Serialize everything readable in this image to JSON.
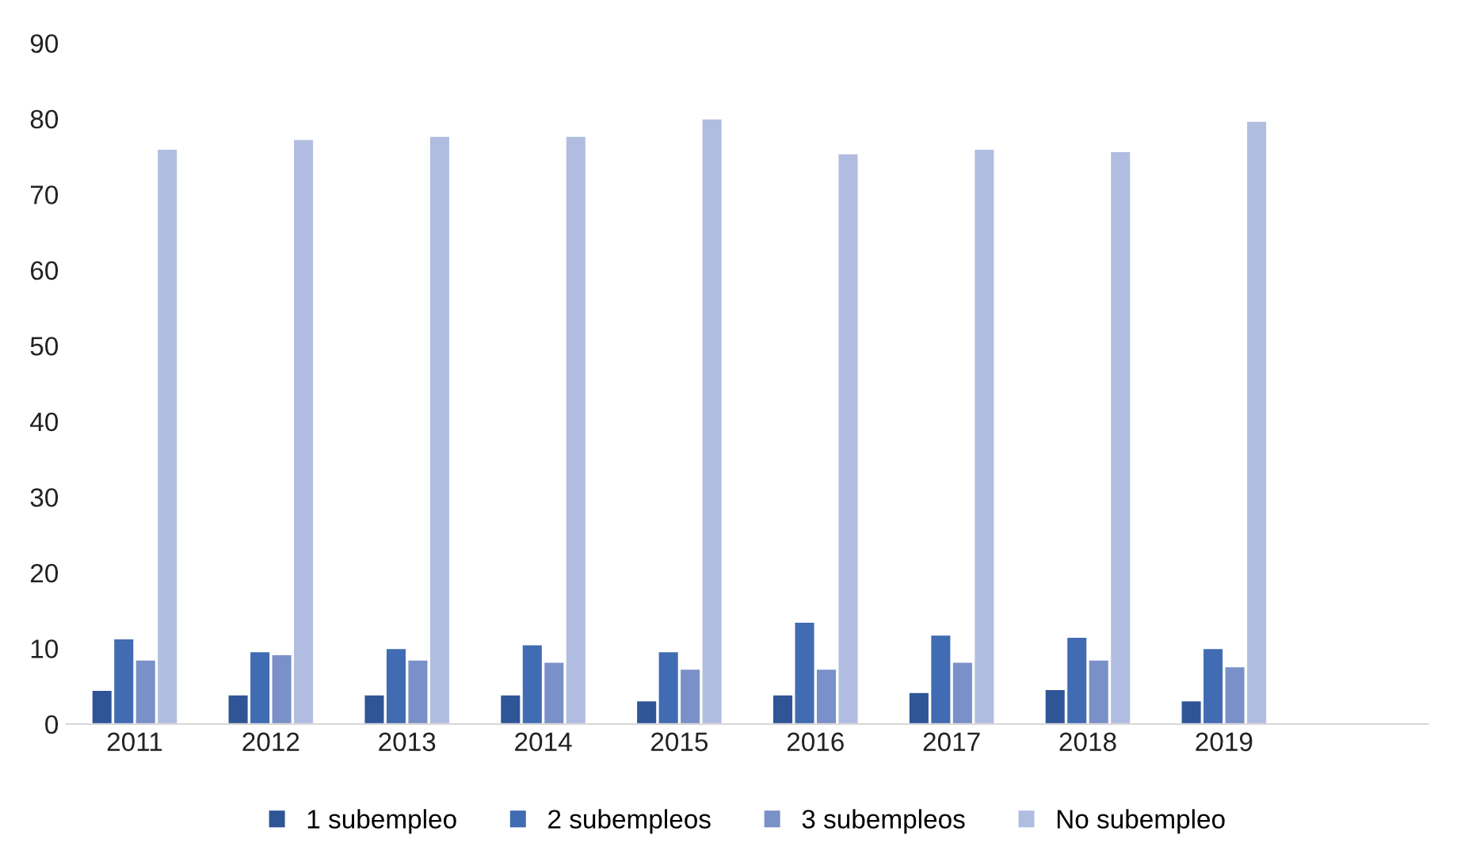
{
  "chart_data": {
    "type": "bar",
    "categories": [
      "2011",
      "2012",
      "2013",
      "2014",
      "2015",
      "2016",
      "2017",
      "2018",
      "2019",
      null
    ],
    "series": [
      {
        "name": "1 subempleo",
        "color": "#305597",
        "values": [
          4.4,
          3.8,
          3.8,
          3.8,
          3.0,
          3.8,
          4.1,
          4.5,
          3.0,
          null
        ]
      },
      {
        "name": "2 subempleos",
        "color": "#416bb2",
        "values": [
          11.2,
          9.5,
          9.9,
          10.4,
          9.5,
          13.4,
          11.7,
          11.4,
          9.9,
          null
        ]
      },
      {
        "name": "3 subempleos",
        "color": "#7a90c8",
        "values": [
          8.4,
          9.1,
          8.4,
          8.1,
          7.2,
          7.2,
          8.1,
          8.4,
          7.5,
          null
        ]
      },
      {
        "name": "No subempleo",
        "color": "#b1bde0",
        "values": [
          75.9,
          77.2,
          77.6,
          77.6,
          79.9,
          75.3,
          75.9,
          75.6,
          79.6,
          null
        ]
      }
    ],
    "ylim": [
      0,
      90
    ],
    "yticks": [
      0,
      10,
      20,
      30,
      40,
      50,
      60,
      70,
      80,
      90
    ],
    "grid": false,
    "legend": "bottom"
  }
}
